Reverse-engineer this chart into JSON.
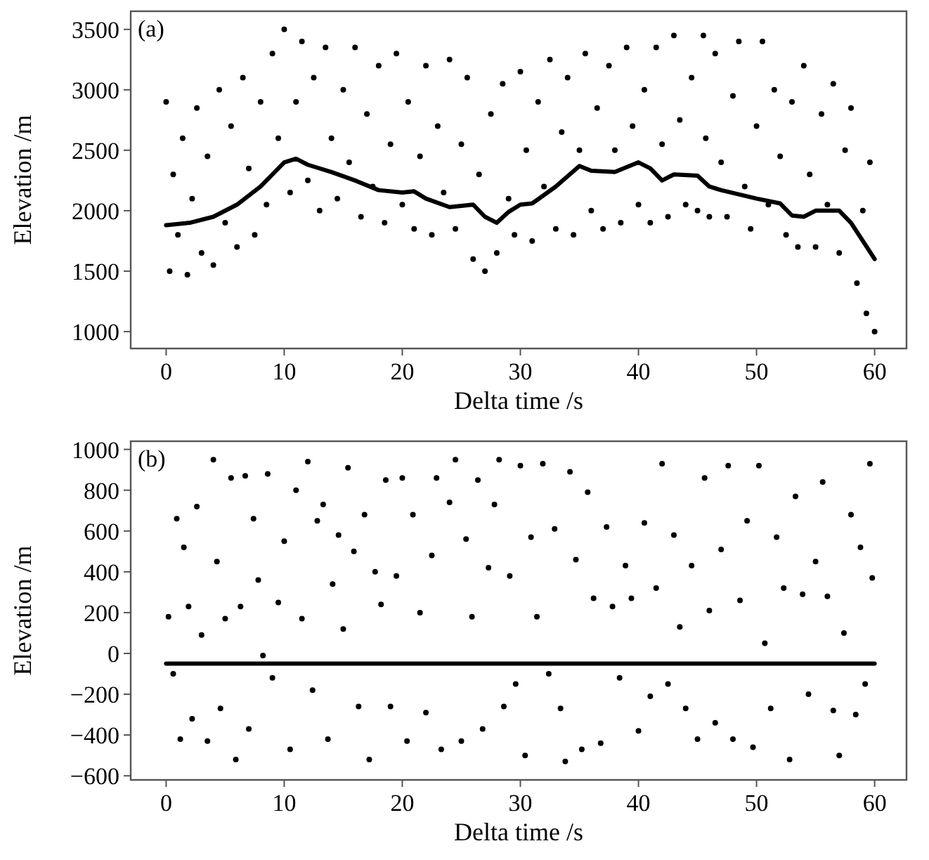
{
  "chart_data": [
    {
      "type": "scatter",
      "xlabel": "Delta time /s",
      "ylabel": "Elevation /m",
      "annotations": [
        "(a)"
      ],
      "xlim": [
        -3,
        62.7
      ],
      "ylim": [
        860,
        3650
      ],
      "xticks": [
        0,
        10,
        20,
        30,
        40,
        50,
        60
      ],
      "yticks": [
        1000,
        1500,
        2000,
        2500,
        3000,
        3500
      ],
      "series": [
        {
          "marker": "circle",
          "color": "#000000",
          "x": [
            0,
            0.3,
            0.6,
            1,
            1.4,
            1.8,
            2.2,
            2.6,
            3,
            3.5,
            4,
            4.5,
            5,
            5.5,
            6,
            6.5,
            7,
            7.5,
            8,
            8.5,
            9,
            9.5,
            10,
            10.5,
            11,
            11.5,
            12,
            12.5,
            13,
            13.5,
            14,
            14.5,
            15,
            15.5,
            16,
            16.5,
            17,
            17.5,
            18,
            18.5,
            19,
            19.5,
            20,
            20.5,
            21,
            21.5,
            22,
            22.5,
            23,
            23.5,
            24,
            24.5,
            25,
            25.5,
            26,
            26.5,
            27,
            27.5,
            28,
            28.5,
            29,
            29.5,
            30,
            30.5,
            31,
            31.5,
            32,
            32.5,
            33,
            33.5,
            34,
            34.5,
            35,
            35.5,
            36,
            36.5,
            37,
            37.5,
            38,
            38.5,
            39,
            39.5,
            40,
            40.5,
            41,
            41.5,
            42,
            42.5,
            43,
            43.5,
            44,
            44.5,
            45,
            45.5,
            45.7,
            46,
            46.5,
            47,
            47.5,
            48,
            48.5,
            49,
            49.5,
            50,
            50.5,
            51,
            51.5,
            52,
            52.5,
            53,
            53.5,
            54,
            54.5,
            55,
            55.5,
            56,
            56.5,
            57,
            57.5,
            58,
            58.5,
            59,
            59.3,
            59.6,
            60
          ],
          "values": [
            2900,
            1500,
            2300,
            1800,
            2600,
            1470,
            2100,
            2850,
            1650,
            2450,
            1550,
            3000,
            1900,
            2700,
            1700,
            3100,
            2350,
            1800,
            2900,
            2050,
            3300,
            2600,
            3500,
            2150,
            2900,
            3400,
            2250,
            3100,
            2000,
            3350,
            2600,
            2100,
            3000,
            2400,
            3350,
            1950,
            2800,
            2200,
            3200,
            1900,
            2550,
            3300,
            2050,
            2900,
            1850,
            2450,
            3200,
            1800,
            2700,
            2150,
            3250,
            1850,
            2550,
            3100,
            1600,
            2300,
            1500,
            2800,
            1650,
            3050,
            2100,
            1800,
            3150,
            2500,
            1750,
            2900,
            2200,
            3250,
            1850,
            2650,
            3100,
            1800,
            2500,
            3300,
            2000,
            2850,
            1850,
            3200,
            2500,
            1900,
            3350,
            2700,
            2050,
            3000,
            1900,
            3350,
            2550,
            1950,
            3450,
            2750,
            2050,
            3100,
            2000,
            3450,
            2600,
            1950,
            3300,
            2400,
            1950,
            2950,
            3400,
            2200,
            1850,
            2700,
            3400,
            2050,
            3000,
            2450,
            1800,
            2900,
            1700,
            3200,
            2300,
            1700,
            2800,
            2050,
            3050,
            1650,
            2500,
            2850,
            1400,
            2000,
            1150,
            2400,
            1000
          ]
        },
        {
          "type": "line",
          "color": "#000000",
          "x": [
            0,
            2,
            4,
            6,
            8,
            9,
            10,
            11,
            12,
            14,
            16,
            18,
            20,
            21,
            22,
            24,
            26,
            27,
            28,
            29,
            30,
            31,
            33,
            35,
            36,
            38,
            40,
            41,
            42,
            43,
            45,
            46,
            47,
            50,
            52,
            53,
            54,
            55,
            57,
            58,
            59,
            60
          ],
          "values": [
            1880,
            1900,
            1950,
            2050,
            2200,
            2300,
            2400,
            2430,
            2380,
            2320,
            2250,
            2170,
            2150,
            2160,
            2100,
            2030,
            2050,
            1950,
            1900,
            1990,
            2050,
            2060,
            2200,
            2370,
            2330,
            2320,
            2400,
            2350,
            2250,
            2300,
            2290,
            2200,
            2170,
            2100,
            2060,
            1960,
            1950,
            2000,
            2000,
            1900,
            1750,
            1600
          ]
        }
      ]
    },
    {
      "type": "scatter",
      "xlabel": "Delta time /s",
      "ylabel": "Elevation /m",
      "annotations": [
        "(b)"
      ],
      "xlim": [
        -3,
        62.7
      ],
      "ylim": [
        -620,
        1040
      ],
      "xticks": [
        0,
        10,
        20,
        30,
        40,
        50,
        60
      ],
      "yticks": [
        {
          "value": -600,
          "label": "−600"
        },
        {
          "value": -400,
          "label": "−400"
        },
        {
          "value": -200,
          "label": "−200"
        },
        0,
        200,
        400,
        600,
        800,
        1000
      ],
      "series": [
        {
          "marker": "circle",
          "color": "#000000",
          "x": [
            0.2,
            0.6,
            0.9,
            1.2,
            1.5,
            1.9,
            2.2,
            2.6,
            3,
            3.5,
            4,
            4.3,
            4.6,
            5,
            5.5,
            5.9,
            6.3,
            6.7,
            7,
            7.4,
            7.8,
            8.2,
            8.6,
            9,
            9.5,
            10,
            10.5,
            11,
            11.5,
            12,
            12.4,
            12.8,
            13.3,
            13.7,
            14.1,
            14.6,
            15,
            15.4,
            15.9,
            16.3,
            16.8,
            17.2,
            17.7,
            18.2,
            18.6,
            19,
            19.5,
            20,
            20.4,
            20.9,
            21.5,
            22,
            22.5,
            22.9,
            23.3,
            24,
            24.5,
            25,
            25.4,
            25.9,
            26.4,
            26.8,
            27.3,
            27.8,
            28.2,
            28.6,
            29.1,
            29.6,
            30,
            30.4,
            30.9,
            31.4,
            31.9,
            32.4,
            32.9,
            33.4,
            33.8,
            34.2,
            34.7,
            35.2,
            35.7,
            36.2,
            36.8,
            37.3,
            37.8,
            38.4,
            38.9,
            39.4,
            40,
            40.5,
            41,
            41.5,
            42,
            42.5,
            43,
            43.5,
            44,
            44.5,
            45,
            45.6,
            46,
            46.5,
            47,
            47.6,
            48,
            48.6,
            49.2,
            49.7,
            50.2,
            50.7,
            51.2,
            51.7,
            52.3,
            52.8,
            53.3,
            53.9,
            54.4,
            55,
            55.6,
            56,
            56.5,
            57,
            57.4,
            58,
            58.4,
            58.8,
            59.2,
            59.6,
            59.8
          ],
          "values": [
            180,
            -100,
            660,
            -420,
            520,
            230,
            -320,
            720,
            90,
            -430,
            950,
            450,
            -270,
            170,
            860,
            -520,
            230,
            870,
            -370,
            660,
            360,
            -10,
            880,
            -120,
            250,
            550,
            -470,
            800,
            170,
            940,
            -180,
            650,
            730,
            -420,
            340,
            580,
            120,
            910,
            500,
            -260,
            680,
            -520,
            400,
            240,
            850,
            -260,
            380,
            860,
            -430,
            680,
            200,
            -290,
            480,
            860,
            -470,
            740,
            950,
            -430,
            560,
            180,
            850,
            -370,
            420,
            730,
            950,
            -260,
            380,
            -150,
            920,
            -500,
            570,
            180,
            930,
            -100,
            610,
            -270,
            -530,
            890,
            460,
            -470,
            790,
            270,
            -440,
            620,
            230,
            -120,
            430,
            270,
            -380,
            640,
            -210,
            320,
            930,
            -150,
            580,
            130,
            -270,
            430,
            -420,
            860,
            210,
            -340,
            510,
            920,
            -420,
            260,
            650,
            -460,
            920,
            50,
            -270,
            570,
            320,
            -520,
            770,
            290,
            -200,
            450,
            840,
            280,
            -280,
            -500,
            100,
            680,
            -300,
            520,
            -150,
            930,
            370
          ]
        },
        {
          "type": "line",
          "color": "#000000",
          "x": [
            0,
            60
          ],
          "values": [
            -50,
            -50
          ]
        }
      ]
    }
  ]
}
